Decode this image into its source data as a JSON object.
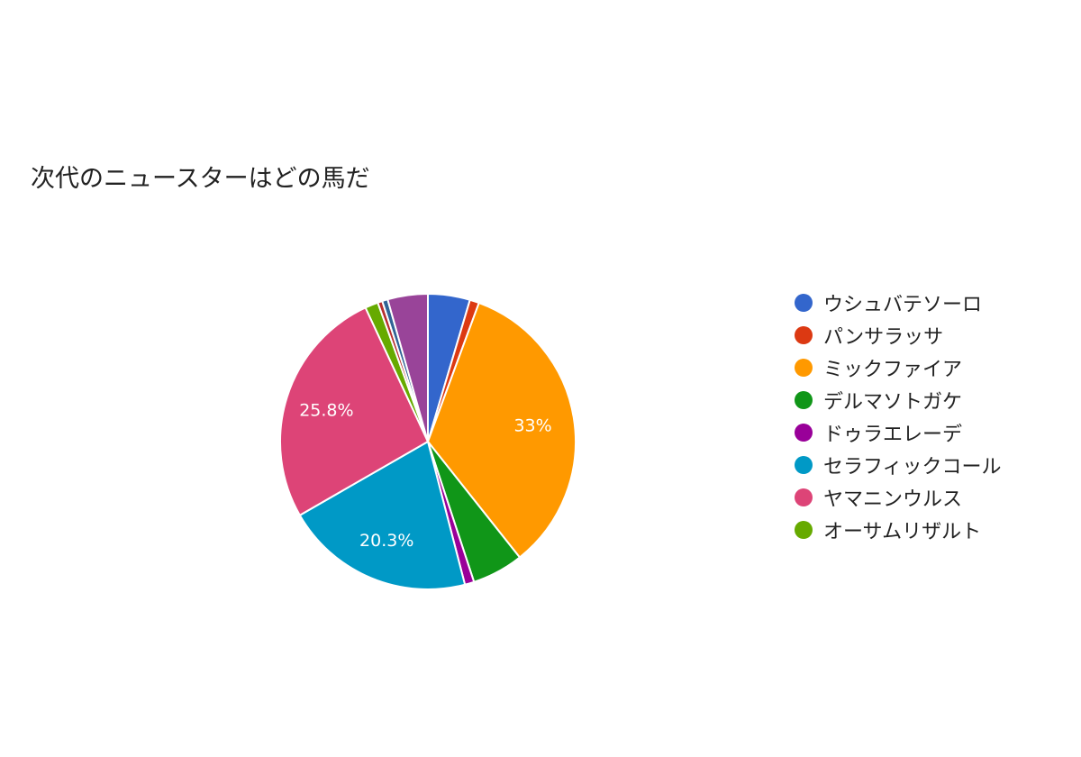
{
  "chart_data": {
    "type": "pie",
    "title": "次代のニュースターはどの馬だ",
    "legend_position": "right",
    "start_angle_deg": 90,
    "direction": "clockwise",
    "slices": [
      {
        "label": "ウシュバテソーロ",
        "value": 4.5,
        "color": "#3366cc",
        "display_label": ""
      },
      {
        "label": "パンサラッサ",
        "value": 1.0,
        "color": "#dc3912",
        "display_label": ""
      },
      {
        "label": "ミックファイア",
        "value": 33,
        "color": "#ff9900",
        "display_label": "33%"
      },
      {
        "label": "デルマソトガケ",
        "value": 5.5,
        "color": "#109618",
        "display_label": ""
      },
      {
        "label": "ドゥラエレーデ",
        "value": 1.0,
        "color": "#990099",
        "display_label": ""
      },
      {
        "label": "セラフィックコール",
        "value": 20.3,
        "color": "#0099c6",
        "display_label": "20.3%"
      },
      {
        "label": "ヤマニンウルス",
        "value": 25.8,
        "color": "#dd4477",
        "display_label": "25.8%"
      },
      {
        "label": "オーサムリザルト",
        "value": 1.4,
        "color": "#66aa00",
        "display_label": ""
      },
      {
        "label": "",
        "value": 0.5,
        "color": "#b82e2e",
        "display_label": ""
      },
      {
        "label": "",
        "value": 0.6,
        "color": "#316395",
        "display_label": ""
      },
      {
        "label": "",
        "value": 4.3,
        "color": "#994499",
        "display_label": ""
      }
    ]
  }
}
